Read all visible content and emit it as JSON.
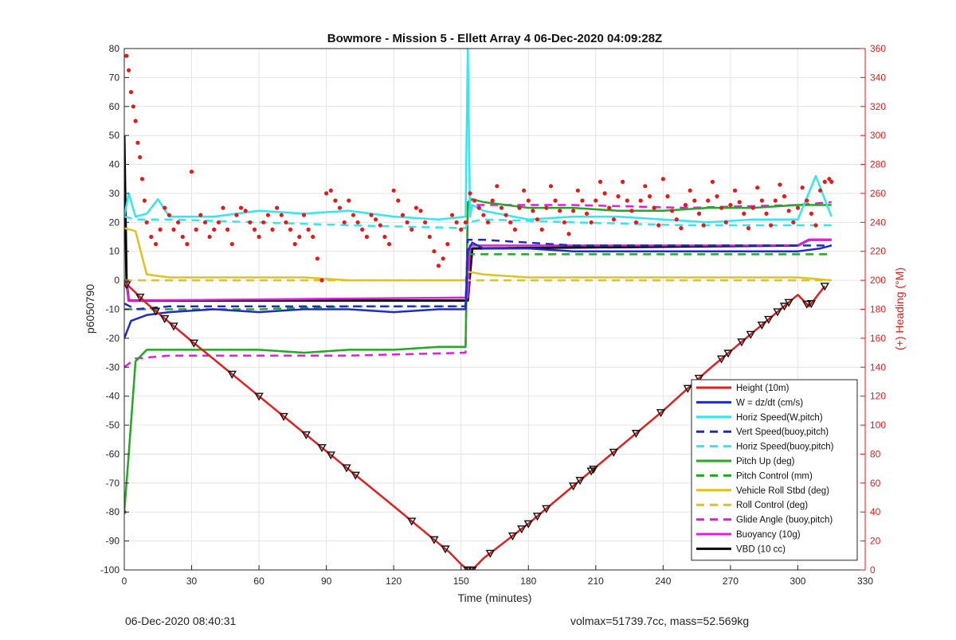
{
  "chart_data": {
    "type": "line",
    "title": "Bowmore - Mission 5 - Ellett Array 4 06-Dec-2020 04:09:28Z",
    "xlabel": "Time (minutes)",
    "ylabel": "p6050790",
    "y2label": "(+) Heading (°M)",
    "xlim": [
      0,
      330
    ],
    "ylim": [
      -100,
      80
    ],
    "y2lim": [
      0,
      360
    ],
    "xticks": [
      0,
      30,
      60,
      90,
      120,
      150,
      180,
      210,
      240,
      270,
      300,
      330
    ],
    "yticks": [
      -100,
      -90,
      -80,
      -70,
      -60,
      -50,
      -40,
      -30,
      -20,
      -10,
      0,
      10,
      20,
      30,
      40,
      50,
      60,
      70,
      80
    ],
    "y2ticks": [
      0,
      20,
      40,
      60,
      80,
      100,
      120,
      140,
      160,
      180,
      200,
      220,
      240,
      260,
      280,
      300,
      320,
      340,
      360
    ],
    "grid": true,
    "legend_position": "lower-right",
    "colors": {
      "height": "#e02020",
      "w": "#1f2bc9",
      "horiz_w": "#33e6f0",
      "vert_buoy": "#1f2bc9",
      "horiz_buoy": "#33e6f0",
      "pitch_up": "#22a822",
      "pitch_control": "#22a822",
      "roll": "#e0c21c",
      "roll_control": "#e0c21c",
      "glide": "#e619e6",
      "buoyancy": "#e619e6",
      "vbd": "#000000",
      "heading": "#e61919",
      "right_axis": "#e61919"
    },
    "series": [
      {
        "name": "Height (10m)",
        "style": "solid",
        "color_key": "height",
        "x": [
          0,
          2,
          10,
          30,
          60,
          90,
          120,
          145,
          150,
          153,
          155,
          160,
          180,
          200,
          220,
          240,
          260,
          280,
          300,
          305,
          312
        ],
        "y": [
          -1,
          -2,
          -8,
          -21,
          -40,
          -59,
          -78,
          -94,
          -98,
          -100,
          -100,
          -96,
          -84,
          -71,
          -58,
          -45,
          -31,
          -18,
          -5,
          -9,
          -2
        ]
      },
      {
        "name": "W = dz/dt (cm/s)",
        "style": "solid",
        "color_key": "w",
        "x": [
          0,
          3,
          10,
          20,
          40,
          60,
          80,
          100,
          120,
          140,
          152,
          153,
          155,
          160,
          180,
          200,
          220,
          240,
          260,
          280,
          300,
          310,
          315
        ],
        "y": [
          -20,
          -14,
          -12,
          -11,
          -10,
          -11,
          -10,
          -10,
          -11,
          -10,
          -10,
          10,
          13,
          11,
          11,
          10,
          10,
          10,
          10,
          10,
          10,
          11,
          12
        ]
      },
      {
        "name": "Horiz Speed(W,pitch)",
        "style": "solid",
        "color_key": "horiz_w",
        "x": [
          0,
          2,
          5,
          10,
          15,
          20,
          40,
          60,
          80,
          100,
          120,
          140,
          152,
          153,
          154,
          155,
          160,
          180,
          200,
          220,
          240,
          260,
          280,
          300,
          308,
          315
        ],
        "y": [
          22,
          30,
          22,
          23,
          28,
          22,
          22,
          24,
          23,
          24,
          22,
          21,
          22,
          80,
          22,
          26,
          24,
          21,
          22,
          22,
          21,
          20,
          21,
          21,
          36,
          22
        ]
      },
      {
        "name": "Vert Speed(buoy,pitch)",
        "style": "dashed",
        "color_key": "vert_buoy",
        "x": [
          0,
          5,
          20,
          60,
          100,
          152,
          153,
          160,
          200,
          250,
          300,
          315
        ],
        "y": [
          -8,
          -10,
          -9,
          -9,
          -9,
          -9,
          14,
          14,
          12,
          12,
          12,
          12
        ]
      },
      {
        "name": "Horiz Speed(buoy,pitch)",
        "style": "dashed",
        "color_key": "horiz_buoy",
        "x": [
          0,
          5,
          20,
          60,
          100,
          152,
          153,
          160,
          200,
          250,
          300,
          315
        ],
        "y": [
          22,
          21,
          21,
          20,
          19,
          18,
          20,
          21,
          20,
          19,
          19,
          19
        ]
      },
      {
        "name": "Pitch Up (deg)",
        "style": "solid",
        "color_key": "pitch_up",
        "x": [
          0,
          2,
          5,
          10,
          20,
          40,
          60,
          80,
          100,
          120,
          140,
          152,
          153,
          155,
          160,
          180,
          200,
          220,
          240,
          260,
          280,
          300,
          315
        ],
        "y": [
          -80,
          -60,
          -28,
          -24,
          -24,
          -24,
          -24,
          -25,
          -24,
          -24,
          -23,
          -23,
          27,
          28,
          27,
          25,
          25,
          24,
          24,
          25,
          25,
          26,
          26
        ]
      },
      {
        "name": "Pitch Control (mm)",
        "style": "dashed",
        "color_key": "pitch_control",
        "x": [
          0,
          5,
          20,
          60,
          100,
          152,
          153,
          160,
          200,
          250,
          300,
          315
        ],
        "y": [
          -10,
          -10,
          -10,
          -10,
          -9,
          -9,
          9,
          9,
          9,
          9,
          9,
          9
        ]
      },
      {
        "name": "Vehicle Roll Stbd (deg)",
        "style": "solid",
        "color_key": "roll",
        "x": [
          0,
          5,
          10,
          20,
          40,
          60,
          80,
          100,
          120,
          140,
          152,
          153,
          160,
          180,
          200,
          220,
          240,
          260,
          280,
          300,
          315
        ],
        "y": [
          18,
          17,
          2,
          1,
          1,
          1,
          1,
          0,
          0,
          0,
          0,
          3,
          2,
          1,
          1,
          1,
          1,
          1,
          1,
          1,
          0
        ]
      },
      {
        "name": "Roll Control (deg)",
        "style": "dashed",
        "color_key": "roll_control",
        "x": [
          0,
          5,
          20,
          60,
          100,
          152,
          153,
          160,
          200,
          250,
          300,
          315
        ],
        "y": [
          0,
          0,
          0,
          0,
          0,
          0,
          0,
          0,
          0,
          0,
          0,
          0
        ]
      },
      {
        "name": "Glide Angle (buoy,pitch)",
        "style": "dashed",
        "color_key": "glide",
        "x": [
          0,
          5,
          20,
          60,
          100,
          152,
          153,
          160,
          200,
          250,
          300,
          315
        ],
        "y": [
          -30,
          -27,
          -26,
          -26,
          -26,
          -25,
          26,
          26,
          26,
          25,
          26,
          27
        ]
      },
      {
        "name": "Buoyancy (10g)",
        "style": "solid",
        "color_key": "buoyancy",
        "x": [
          0,
          1,
          2,
          150,
          153,
          154,
          300,
          305,
          315
        ],
        "y": [
          0,
          0,
          -7,
          -6,
          -6,
          12,
          12,
          14,
          14
        ]
      },
      {
        "name": "VBD (10 cc)",
        "style": "solid",
        "color_key": "vbd",
        "x": [
          0,
          1,
          2,
          152,
          153,
          155,
          300,
          305,
          315
        ],
        "y": [
          50,
          0,
          -7,
          -7,
          -7,
          11,
          12,
          14,
          14
        ]
      }
    ],
    "heading": {
      "name": "Heading (°M)",
      "axis": "right",
      "x": [
        0,
        1,
        2,
        3,
        4,
        5,
        6,
        7,
        8,
        9,
        10,
        12,
        14,
        16,
        18,
        20,
        22,
        24,
        26,
        28,
        30,
        32,
        34,
        36,
        38,
        40,
        42,
        44,
        46,
        48,
        50,
        52,
        54,
        56,
        58,
        60,
        62,
        64,
        66,
        68,
        70,
        72,
        74,
        76,
        78,
        80,
        82,
        84,
        86,
        88,
        90,
        92,
        94,
        96,
        98,
        100,
        102,
        104,
        106,
        108,
        110,
        112,
        114,
        116,
        118,
        120,
        122,
        124,
        126,
        128,
        130,
        132,
        134,
        136,
        138,
        140,
        142,
        144,
        146,
        148,
        150,
        152,
        154,
        156,
        158,
        160,
        162,
        164,
        166,
        168,
        170,
        172,
        174,
        176,
        178,
        180,
        182,
        184,
        186,
        188,
        190,
        192,
        194,
        196,
        198,
        200,
        202,
        204,
        206,
        208,
        210,
        212,
        214,
        216,
        218,
        220,
        222,
        224,
        226,
        228,
        230,
        232,
        234,
        236,
        238,
        240,
        242,
        244,
        246,
        248,
        250,
        252,
        254,
        256,
        258,
        260,
        262,
        264,
        266,
        268,
        270,
        272,
        274,
        276,
        278,
        280,
        282,
        284,
        286,
        288,
        290,
        292,
        294,
        296,
        298,
        300,
        302,
        304,
        306,
        308,
        310,
        312,
        314,
        315
      ],
      "y": [
        40,
        355,
        345,
        330,
        320,
        310,
        295,
        285,
        270,
        255,
        240,
        230,
        225,
        235,
        250,
        245,
        235,
        240,
        230,
        225,
        275,
        235,
        245,
        240,
        230,
        235,
        240,
        250,
        235,
        225,
        245,
        250,
        248,
        240,
        235,
        230,
        240,
        245,
        235,
        250,
        245,
        240,
        235,
        225,
        230,
        245,
        235,
        230,
        215,
        200,
        260,
        262,
        255,
        250,
        240,
        255,
        245,
        240,
        235,
        230,
        245,
        242,
        238,
        230,
        225,
        262,
        255,
        245,
        240,
        235,
        250,
        248,
        240,
        230,
        220,
        210,
        215,
        225,
        245,
        240,
        235,
        240,
        260,
        255,
        250,
        245,
        240,
        255,
        265,
        250,
        245,
        240,
        235,
        250,
        262,
        255,
        248,
        242,
        235,
        250,
        265,
        255,
        248,
        240,
        232,
        248,
        262,
        255,
        246,
        240,
        255,
        268,
        260,
        250,
        242,
        258,
        268,
        255,
        248,
        240,
        255,
        265,
        258,
        250,
        238,
        270,
        258,
        248,
        242,
        236,
        252,
        262,
        255,
        246,
        238,
        255,
        268,
        258,
        250,
        240,
        252,
        262,
        254,
        246,
        236,
        250,
        264,
        255,
        246,
        238,
        255,
        266,
        258,
        248,
        240,
        250,
        264,
        255,
        246,
        238,
        262,
        268,
        270,
        268
      ]
    },
    "markers": {
      "x": [
        1,
        7,
        14,
        18,
        22,
        31,
        48,
        60,
        71,
        81,
        88,
        92,
        99,
        103,
        128,
        138,
        143,
        153,
        154,
        155,
        163,
        173,
        177,
        180,
        184,
        188,
        200,
        203,
        208,
        209,
        218,
        228,
        239,
        251,
        256,
        266,
        269,
        275,
        279,
        284,
        287,
        291,
        294,
        296,
        304,
        306,
        312
      ]
    }
  },
  "footer": {
    "left": "06-Dec-2020 08:40:31",
    "right": "volmax=51739.7cc, mass=52.569kg"
  }
}
